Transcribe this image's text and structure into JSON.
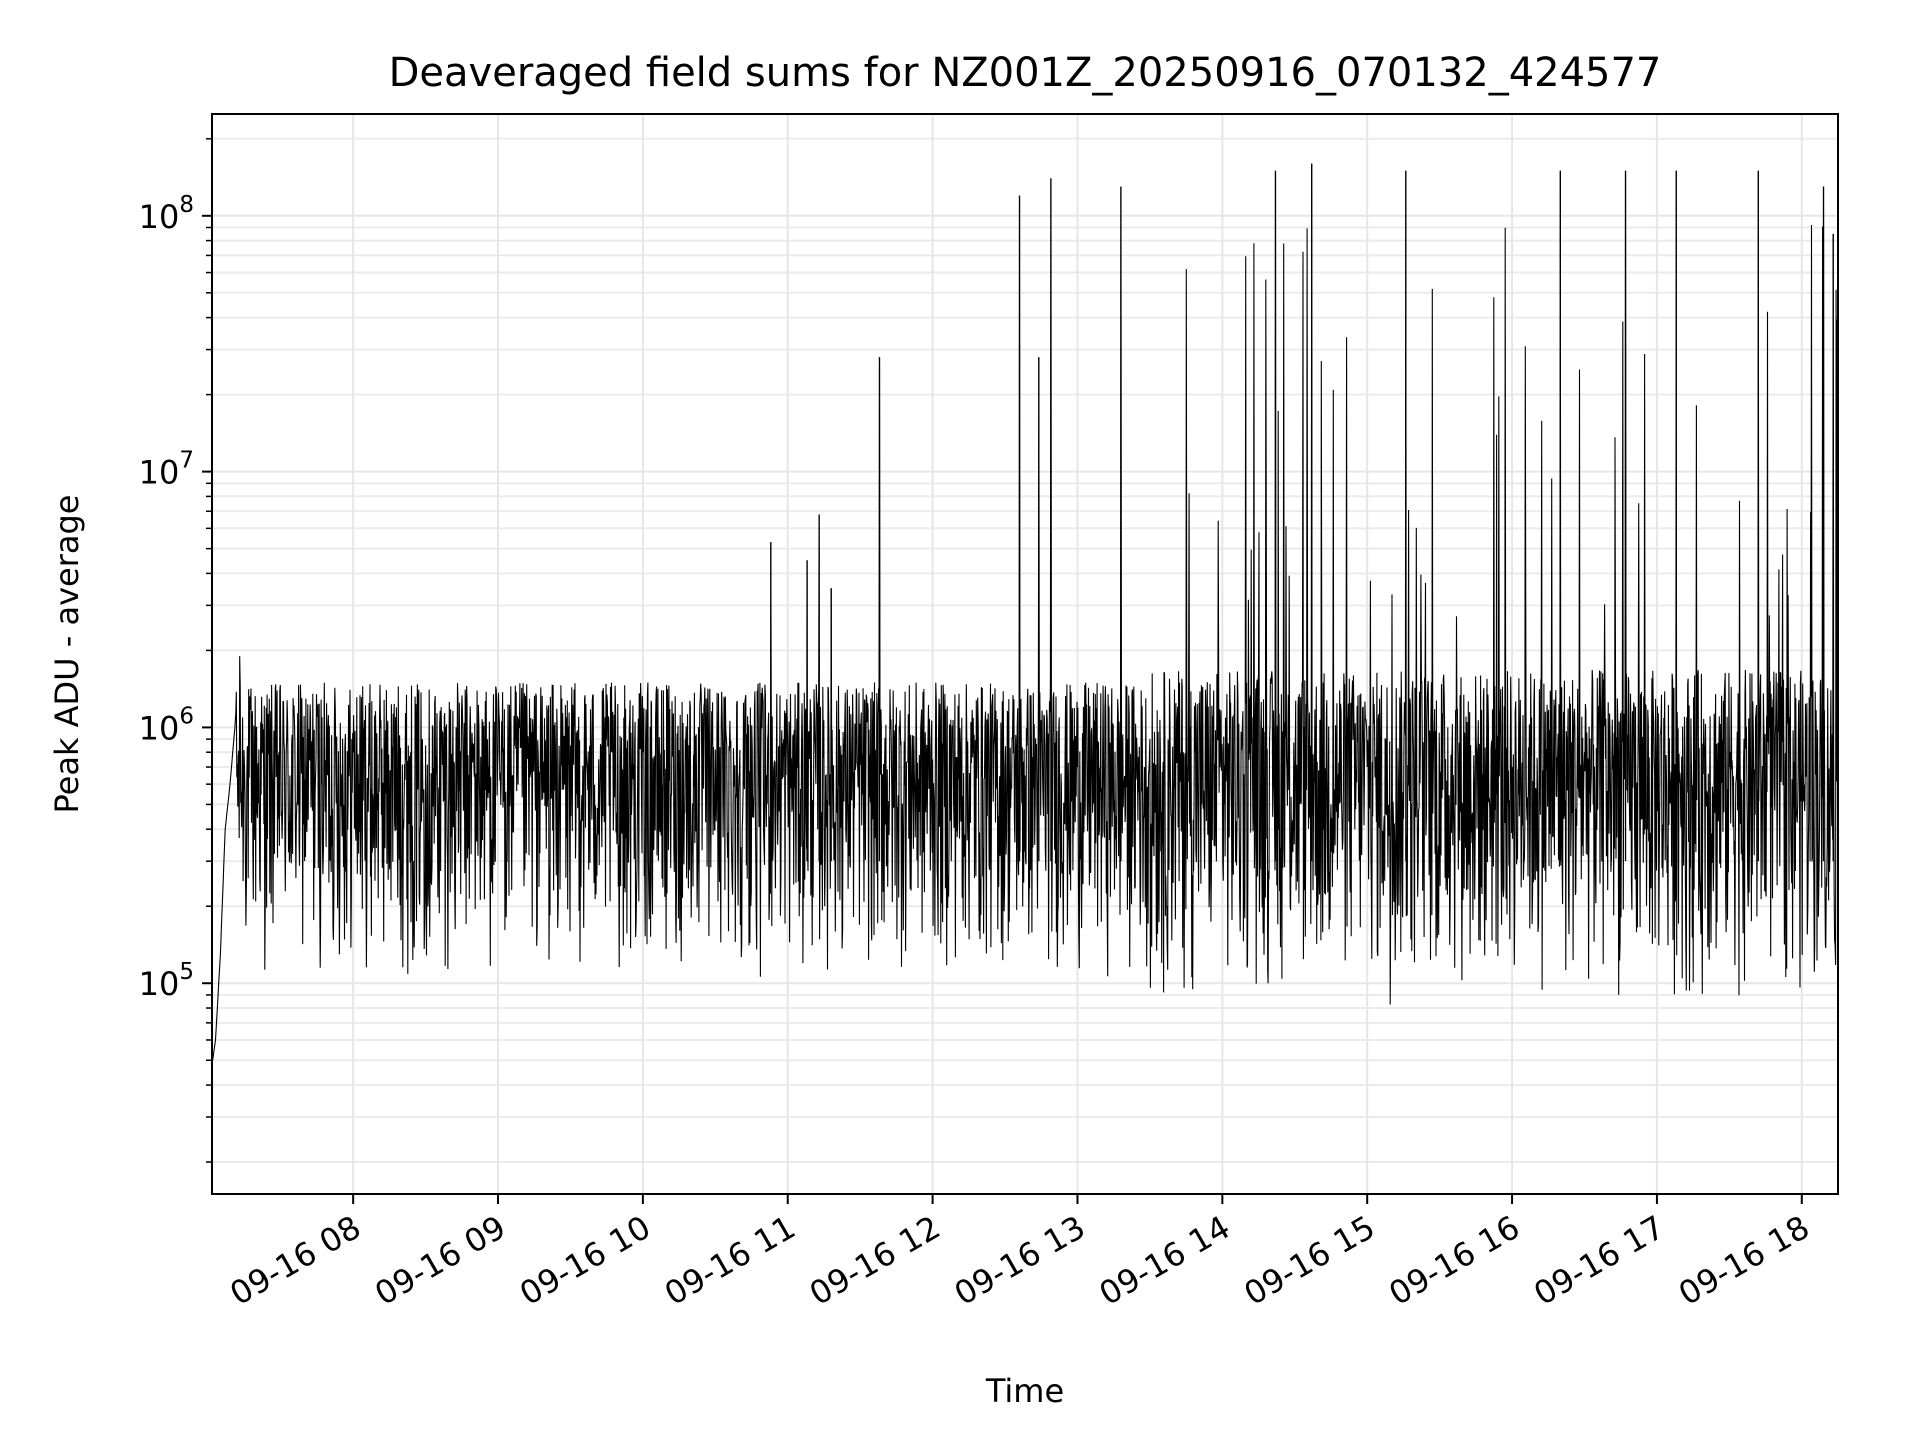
{
  "chart_data": {
    "type": "line",
    "title": "Deaveraged field sums for NZ001Z_20250916_070132_424577",
    "xlabel": "Time",
    "ylabel": "Peak ADU - average",
    "yscale": "log",
    "ylim": [
      15000,
      250000000
    ],
    "xlim": [
      "09-16 07:01:32",
      "09-16 18:15:00"
    ],
    "grid": true,
    "line_color": "#000000",
    "x_ticks": [
      {
        "value": "09-16 08:00",
        "label": "09-16 08"
      },
      {
        "value": "09-16 09:00",
        "label": "09-16 09"
      },
      {
        "value": "09-16 10:00",
        "label": "09-16 10"
      },
      {
        "value": "09-16 11:00",
        "label": "09-16 11"
      },
      {
        "value": "09-16 12:00",
        "label": "09-16 12"
      },
      {
        "value": "09-16 13:00",
        "label": "09-16 13"
      },
      {
        "value": "09-16 14:00",
        "label": "09-16 14"
      },
      {
        "value": "09-16 15:00",
        "label": "09-16 15"
      },
      {
        "value": "09-16 16:00",
        "label": "09-16 16"
      },
      {
        "value": "09-16 17:00",
        "label": "09-16 17"
      },
      {
        "value": "09-16 18:00",
        "label": "09-16 18"
      }
    ],
    "y_ticks": [
      {
        "value": 100000,
        "base": "10",
        "exp": "5"
      },
      {
        "value": 1000000,
        "base": "10",
        "exp": "6"
      },
      {
        "value": 10000000,
        "base": "10",
        "exp": "7"
      },
      {
        "value": 100000000,
        "base": "10",
        "exp": "8"
      }
    ],
    "series": [
      {
        "points": [
          [
            "09-16 07:01:32",
            48000
          ],
          [
            "09-16 07:03",
            60000
          ],
          [
            "09-16 07:05",
            130000
          ],
          [
            "09-16 07:07",
            400000
          ],
          [
            "09-16 07:09",
            600000
          ],
          [
            "09-16 07:11",
            1000000
          ],
          [
            "09-16 07:13",
            1900000
          ],
          [
            "09-16 07:15",
            700000
          ],
          [
            "09-16 07:20",
            1000000
          ],
          [
            "09-16 07:30",
            900000
          ],
          [
            "09-16 07:45",
            1100000
          ],
          [
            "09-16 08:00",
            800000
          ],
          [
            "09-16 08:30",
            850000
          ],
          [
            "09-16 09:00",
            800000
          ],
          [
            "09-16 09:30",
            850000
          ],
          [
            "09-16 10:00",
            800000
          ],
          [
            "09-16 10:30",
            820000
          ],
          [
            "09-16 10:53",
            5300000
          ],
          [
            "09-16 11:00",
            800000
          ],
          [
            "09-16 11:08",
            4500000
          ],
          [
            "09-16 11:13",
            6800000
          ],
          [
            "09-16 11:18",
            3500000
          ],
          [
            "09-16 11:38",
            28000000
          ],
          [
            "09-16 12:00",
            750000
          ],
          [
            "09-16 12:30",
            700000
          ],
          [
            "09-16 12:36",
            120000000
          ],
          [
            "09-16 12:44",
            28000000
          ],
          [
            "09-16 12:49",
            140000000
          ],
          [
            "09-16 13:00",
            700000
          ],
          [
            "09-16 13:18",
            130000000
          ],
          [
            "09-16 13:30",
            900000
          ],
          [
            "09-16 14:00",
            800000
          ],
          [
            "09-16 14:22",
            150000000
          ],
          [
            "09-16 14:30",
            650000
          ],
          [
            "09-16 14:37",
            160000000
          ],
          [
            "09-16 14:45",
            500000
          ],
          [
            "09-16 15:00",
            700000
          ],
          [
            "09-16 15:16",
            150000000
          ],
          [
            "09-16 15:30",
            700000
          ],
          [
            "09-16 16:00",
            700000
          ],
          [
            "09-16 16:20",
            150000000
          ],
          [
            "09-16 16:30",
            800000
          ],
          [
            "09-16 16:47",
            150000000
          ],
          [
            "09-16 17:00",
            750000
          ],
          [
            "09-16 17:08",
            150000000
          ],
          [
            "09-16 17:30",
            700000
          ],
          [
            "09-16 17:42",
            150000000
          ],
          [
            "09-16 18:00",
            650000
          ],
          [
            "09-16 18:09",
            130000000
          ],
          [
            "09-16 18:13",
            85000000
          ],
          [
            "09-16 18:15",
            1400000
          ]
        ],
        "noise_band": {
          "low": 90000,
          "high": 1500000,
          "note_min": 47000
        }
      }
    ]
  }
}
